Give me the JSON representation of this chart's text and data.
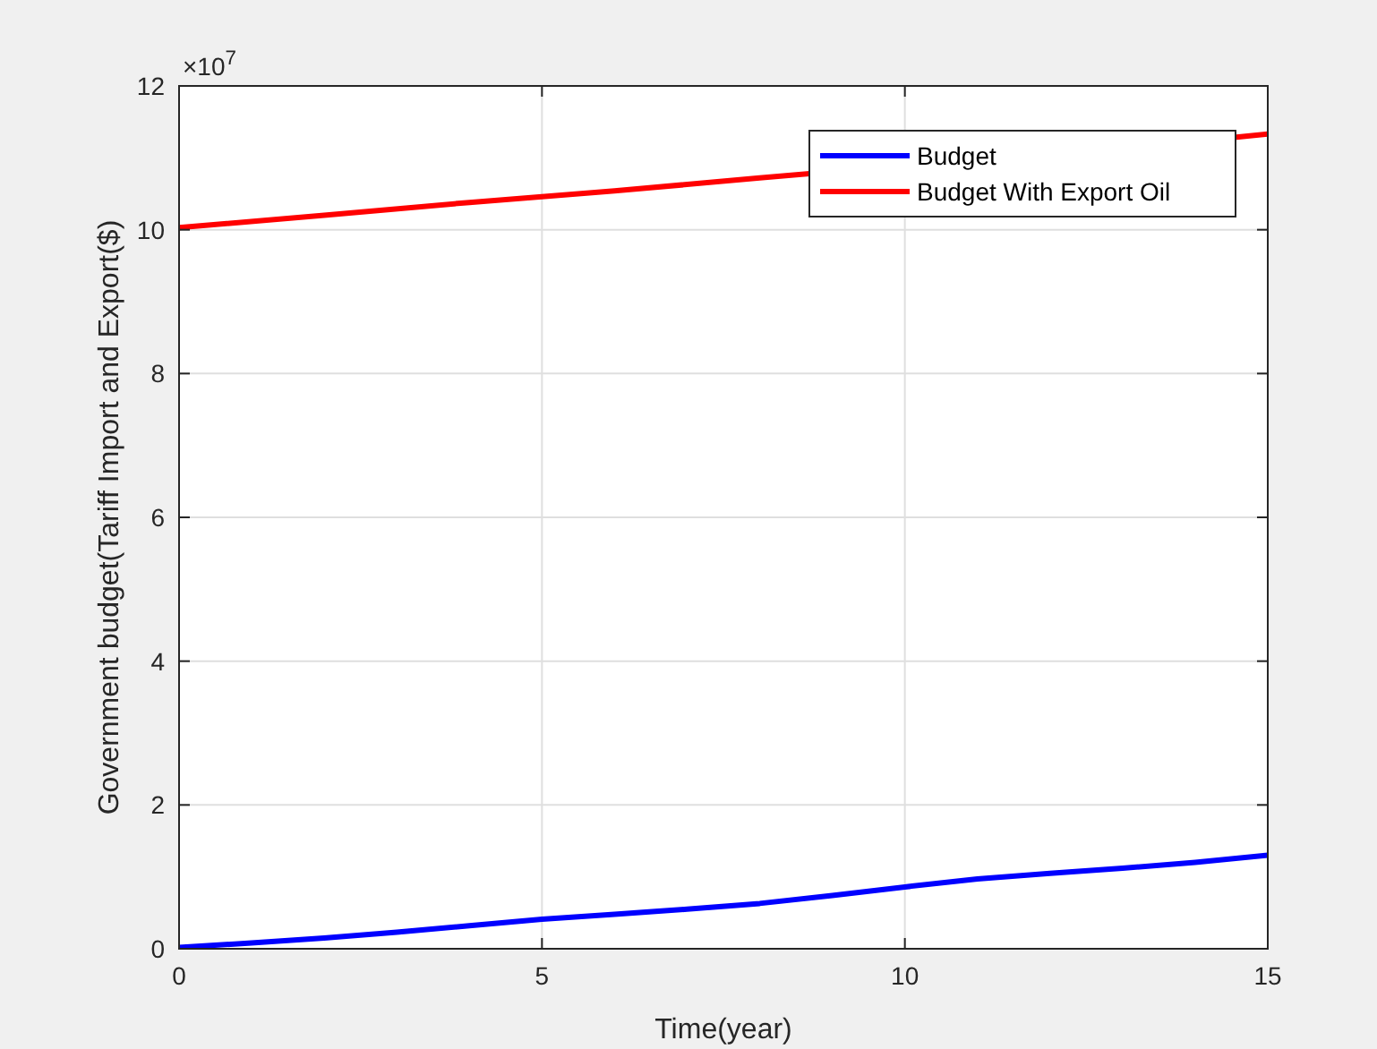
{
  "chart_data": {
    "type": "line",
    "xlabel": "Time(year)",
    "ylabel": "Government budget(Tariff Import and Export($)",
    "annotations": [
      "×10$^{7}$"
    ],
    "xlim": [
      0,
      15
    ],
    "xticks": [
      0,
      5,
      10,
      15
    ],
    "ylim": [
      0,
      12
    ],
    "yticks": [
      0,
      2,
      4,
      6,
      8,
      10,
      12
    ],
    "grid": true,
    "legend": "top right",
    "line_style": "solid",
    "marker": "none",
    "series": [
      {
        "name": "Budget",
        "color": "#0000ff",
        "x": [
          0,
          1,
          2,
          3,
          4,
          5,
          6,
          7,
          8,
          9,
          10,
          11,
          12,
          13,
          14,
          15
        ],
        "values": [
          0.02,
          0.08,
          0.15,
          0.23,
          0.32,
          0.41,
          0.48,
          0.55,
          0.63,
          0.74,
          0.86,
          0.97,
          1.05,
          1.12,
          1.2,
          1.3
        ]
      },
      {
        "name": "Budget With Export Oil",
        "color": "#ff0000",
        "x": [
          0,
          2,
          4,
          6,
          8,
          14.6,
          15
        ],
        "values": [
          10.03,
          10.2,
          10.38,
          10.54,
          10.72,
          11.29,
          11.33
        ]
      }
    ]
  }
}
